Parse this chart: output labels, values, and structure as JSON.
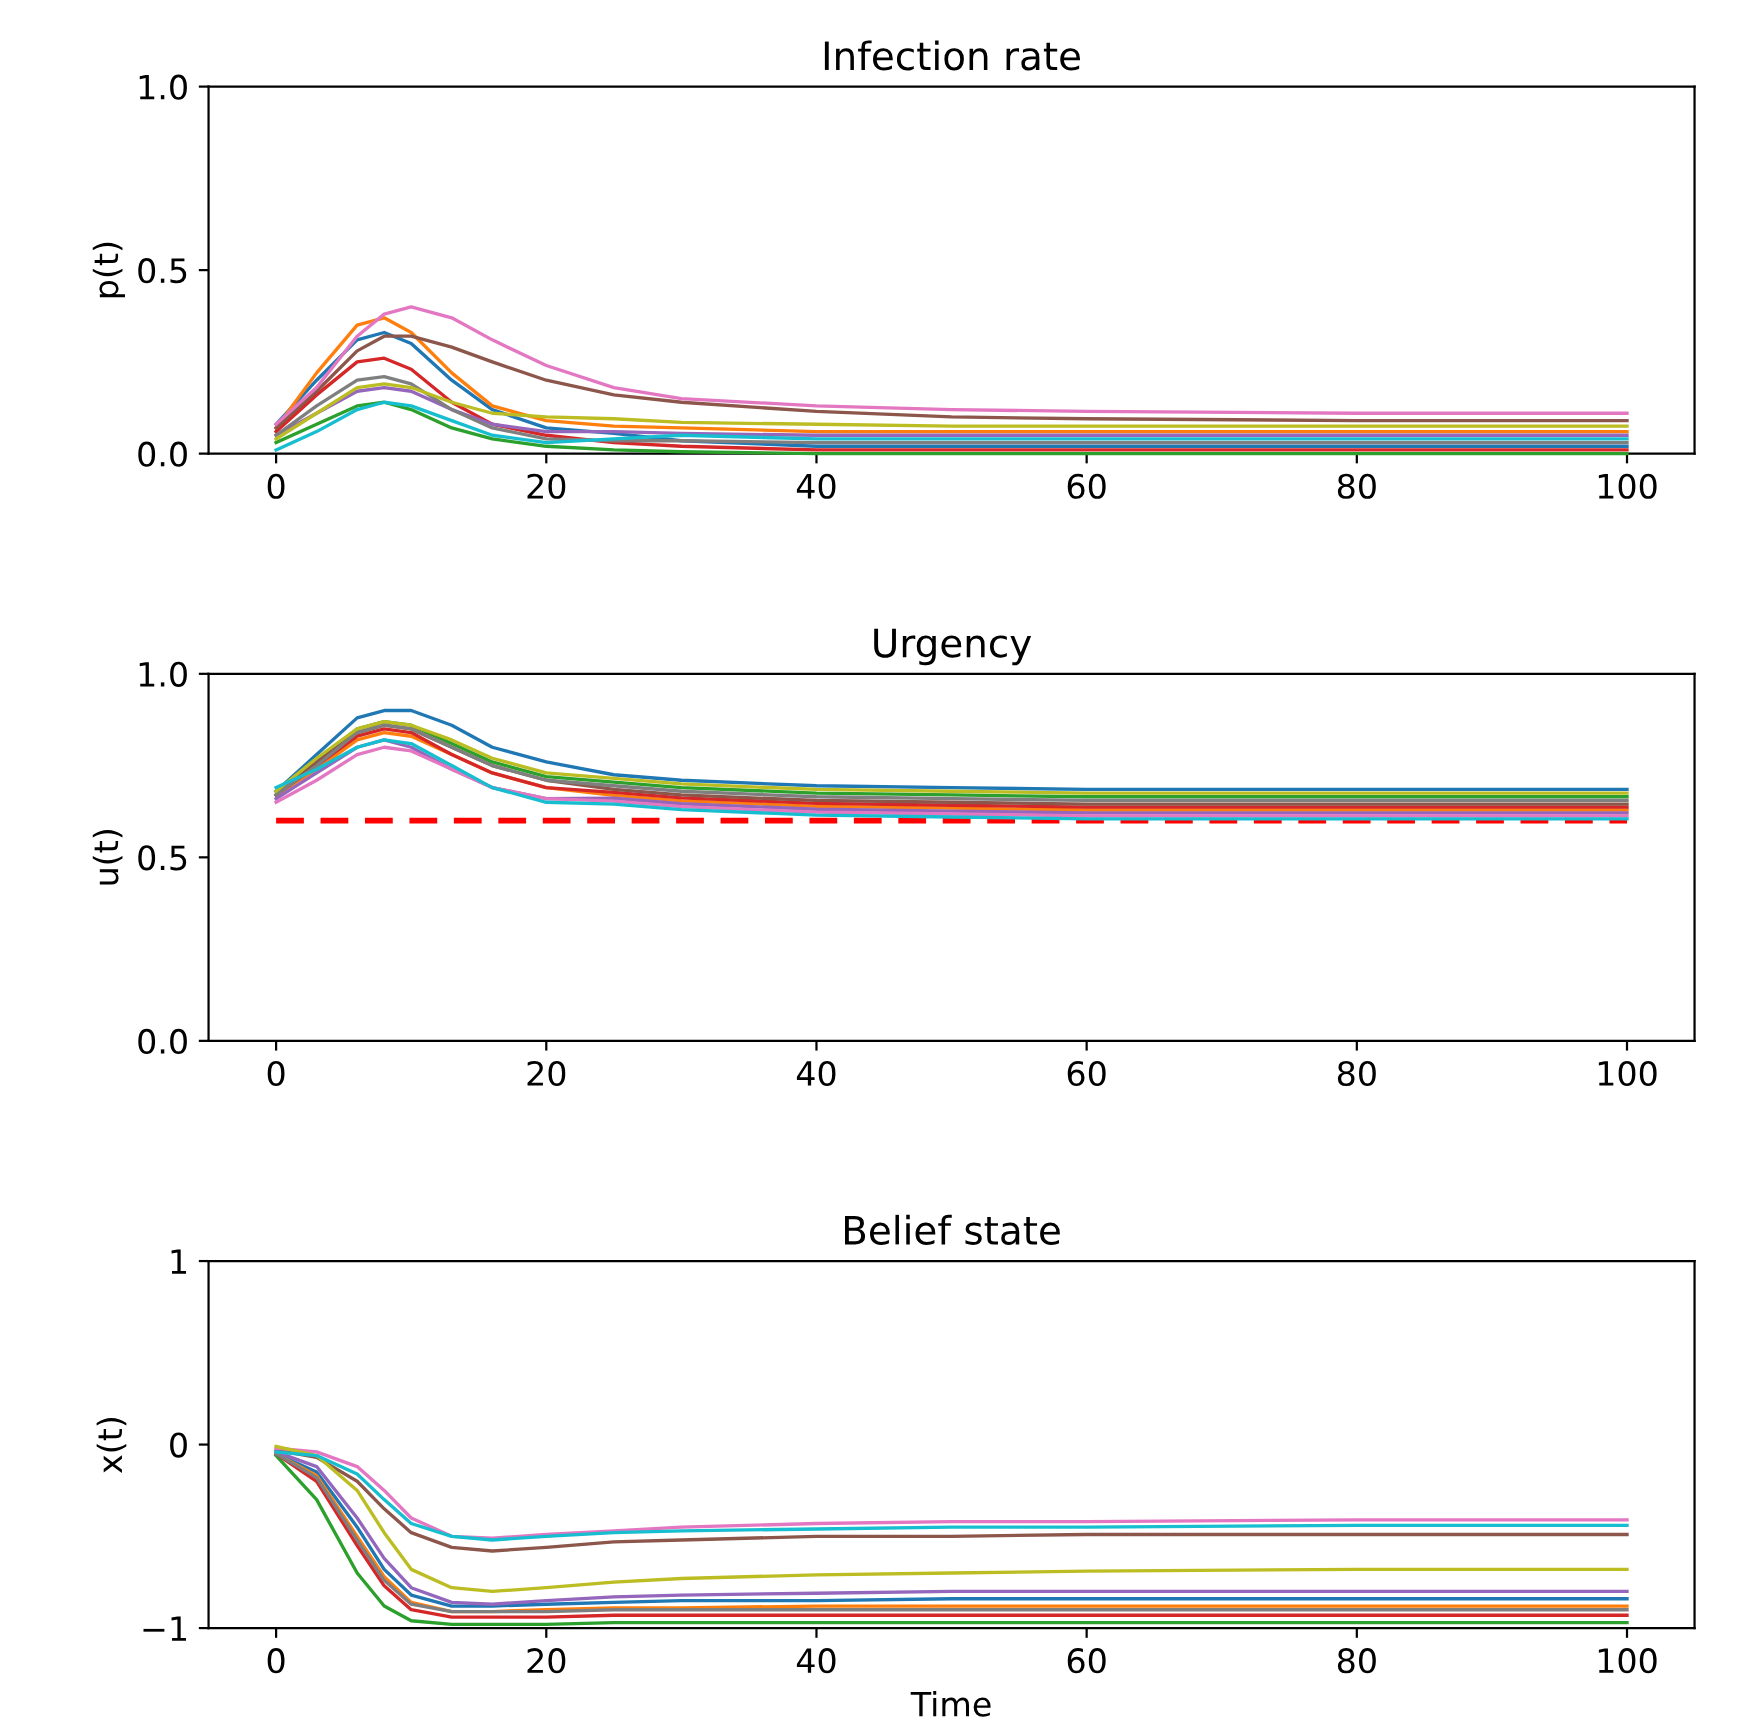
{
  "chart_data": [
    {
      "type": "line",
      "title": "Infection rate",
      "ylabel": "p(t)",
      "x": [
        0,
        3,
        6,
        8,
        10,
        13,
        16,
        20,
        25,
        30,
        40,
        50,
        60,
        80,
        100
      ],
      "xlim": [
        -5,
        105
      ],
      "xticks": [
        0,
        20,
        40,
        60,
        80,
        100
      ],
      "ylim": [
        0,
        1
      ],
      "yticks": [
        {
          "value": 0,
          "label": "0.0"
        },
        0.5,
        {
          "value": 1,
          "label": "1.0"
        }
      ],
      "series": [
        {
          "color": "#1f77b4",
          "values": [
            0.08,
            0.2,
            0.31,
            0.33,
            0.3,
            0.2,
            0.12,
            0.07,
            0.055,
            0.035,
            0.02,
            0.02,
            0.02,
            0.02,
            0.02
          ]
        },
        {
          "color": "#ff7f0e",
          "values": [
            0.07,
            0.22,
            0.35,
            0.37,
            0.33,
            0.22,
            0.13,
            0.09,
            0.075,
            0.07,
            0.06,
            0.06,
            0.06,
            0.06,
            0.06
          ]
        },
        {
          "color": "#2ca02c",
          "values": [
            0.03,
            0.08,
            0.13,
            0.14,
            0.12,
            0.07,
            0.04,
            0.02,
            0.01,
            0.005,
            0,
            0,
            0,
            0,
            0
          ]
        },
        {
          "color": "#d62728",
          "values": [
            0.06,
            0.16,
            0.25,
            0.26,
            0.23,
            0.14,
            0.08,
            0.05,
            0.03,
            0.02,
            0.01,
            0.01,
            0.01,
            0.01,
            0.01
          ]
        },
        {
          "color": "#9467bd",
          "values": [
            0.05,
            0.11,
            0.17,
            0.18,
            0.17,
            0.12,
            0.08,
            0.06,
            0.06,
            0.055,
            0.05,
            0.05,
            0.05,
            0.05,
            0.05
          ]
        },
        {
          "color": "#8c564b",
          "values": [
            0.07,
            0.17,
            0.28,
            0.32,
            0.32,
            0.29,
            0.25,
            0.2,
            0.16,
            0.14,
            0.115,
            0.1,
            0.095,
            0.09,
            0.09
          ]
        },
        {
          "color": "#e377c2",
          "values": [
            0.08,
            0.18,
            0.32,
            0.38,
            0.4,
            0.37,
            0.31,
            0.24,
            0.18,
            0.15,
            0.13,
            0.12,
            0.115,
            0.11,
            0.11
          ]
        },
        {
          "color": "#7f7f7f",
          "values": [
            0.05,
            0.13,
            0.2,
            0.21,
            0.19,
            0.12,
            0.07,
            0.04,
            0.035,
            0.035,
            0.03,
            0.03,
            0.03,
            0.03,
            0.03
          ]
        },
        {
          "color": "#bcbd22",
          "values": [
            0.04,
            0.11,
            0.18,
            0.19,
            0.18,
            0.14,
            0.11,
            0.1,
            0.095,
            0.085,
            0.08,
            0.075,
            0.075,
            0.075,
            0.075
          ]
        },
        {
          "color": "#17becf",
          "values": [
            0.01,
            0.06,
            0.12,
            0.14,
            0.13,
            0.09,
            0.05,
            0.03,
            0.04,
            0.05,
            0.04,
            0.04,
            0.04,
            0.04,
            0.04
          ]
        }
      ]
    },
    {
      "type": "line",
      "title": "Urgency",
      "ylabel": "u(t)",
      "x": [
        0,
        3,
        6,
        8,
        10,
        13,
        16,
        20,
        25,
        30,
        40,
        50,
        60,
        80,
        100
      ],
      "xlim": [
        -5,
        105
      ],
      "xticks": [
        0,
        20,
        40,
        60,
        80,
        100
      ],
      "ylim": [
        0,
        1
      ],
      "yticks": [
        {
          "value": 0,
          "label": "0.0"
        },
        0.5,
        {
          "value": 1,
          "label": "1.0"
        }
      ],
      "ref_lines": [
        {
          "axis": "y",
          "value": 0.6,
          "label": null,
          "color": "#ff0000",
          "line_style": "dashed"
        }
      ],
      "series": [
        {
          "color": "#1f77b4",
          "values": [
            0.68,
            0.78,
            0.88,
            0.9,
            0.9,
            0.86,
            0.8,
            0.76,
            0.725,
            0.71,
            0.695,
            0.69,
            0.685,
            0.685,
            0.685
          ]
        },
        {
          "color": "#ff7f0e",
          "values": [
            0.67,
            0.74,
            0.82,
            0.84,
            0.83,
            0.78,
            0.73,
            0.69,
            0.669,
            0.654,
            0.639,
            0.634,
            0.629,
            0.629,
            0.629
          ]
        },
        {
          "color": "#2ca02c",
          "values": [
            0.68,
            0.76,
            0.85,
            0.87,
            0.86,
            0.81,
            0.76,
            0.72,
            0.705,
            0.69,
            0.675,
            0.67,
            0.665,
            0.665,
            0.665
          ]
        },
        {
          "color": "#d62728",
          "values": [
            0.67,
            0.75,
            0.83,
            0.85,
            0.84,
            0.78,
            0.73,
            0.69,
            0.677,
            0.662,
            0.647,
            0.642,
            0.637,
            0.637,
            0.637
          ]
        },
        {
          "color": "#9467bd",
          "values": [
            0.66,
            0.73,
            0.8,
            0.82,
            0.8,
            0.74,
            0.69,
            0.66,
            0.661,
            0.646,
            0.631,
            0.626,
            0.621,
            0.621,
            0.621
          ]
        },
        {
          "color": "#8c564b",
          "values": [
            0.67,
            0.76,
            0.84,
            0.86,
            0.85,
            0.8,
            0.75,
            0.71,
            0.685,
            0.67,
            0.655,
            0.65,
            0.645,
            0.645,
            0.645
          ]
        },
        {
          "color": "#e377c2",
          "values": [
            0.65,
            0.71,
            0.78,
            0.8,
            0.79,
            0.74,
            0.69,
            0.66,
            0.653,
            0.638,
            0.623,
            0.618,
            0.613,
            0.613,
            0.613
          ]
        },
        {
          "color": "#7f7f7f",
          "values": [
            0.67,
            0.75,
            0.84,
            0.86,
            0.85,
            0.8,
            0.75,
            0.71,
            0.695,
            0.68,
            0.665,
            0.66,
            0.655,
            0.655,
            0.655
          ]
        },
        {
          "color": "#bcbd22",
          "values": [
            0.68,
            0.77,
            0.85,
            0.87,
            0.86,
            0.82,
            0.77,
            0.73,
            0.715,
            0.7,
            0.685,
            0.68,
            0.675,
            0.675,
            0.675
          ]
        },
        {
          "color": "#17becf",
          "values": [
            0.69,
            0.74,
            0.8,
            0.82,
            0.81,
            0.75,
            0.69,
            0.65,
            0.645,
            0.63,
            0.615,
            0.61,
            0.605,
            0.605,
            0.605
          ]
        }
      ]
    },
    {
      "type": "line",
      "title": "Belief state",
      "ylabel": "x(t)",
      "xlabel": "Time",
      "x": [
        0,
        3,
        6,
        8,
        10,
        13,
        16,
        20,
        25,
        30,
        40,
        50,
        60,
        80,
        100
      ],
      "xlim": [
        -5,
        105
      ],
      "xticks": [
        0,
        20,
        40,
        60,
        80,
        100
      ],
      "ylim": [
        -1,
        1
      ],
      "yticks": [
        {
          "value": -1,
          "label": "−1"
        },
        0,
        1
      ],
      "series": [
        {
          "color": "#1f77b4",
          "values": [
            -0.05,
            -0.15,
            -0.45,
            -0.68,
            -0.82,
            -0.88,
            -0.88,
            -0.87,
            -0.86,
            -0.85,
            -0.85,
            -0.84,
            -0.84,
            -0.84,
            -0.84
          ]
        },
        {
          "color": "#ff7f0e",
          "values": [
            -0.05,
            -0.17,
            -0.5,
            -0.72,
            -0.86,
            -0.91,
            -0.91,
            -0.9,
            -0.89,
            -0.89,
            -0.88,
            -0.88,
            -0.88,
            -0.88,
            -0.88
          ]
        },
        {
          "color": "#2ca02c",
          "values": [
            -0.06,
            -0.3,
            -0.7,
            -0.88,
            -0.96,
            -0.98,
            -0.98,
            -0.98,
            -0.97,
            -0.97,
            -0.97,
            -0.97,
            -0.97,
            -0.97,
            -0.97
          ]
        },
        {
          "color": "#d62728",
          "values": [
            -0.05,
            -0.2,
            -0.55,
            -0.77,
            -0.9,
            -0.94,
            -0.94,
            -0.94,
            -0.93,
            -0.93,
            -0.93,
            -0.93,
            -0.93,
            -0.93,
            -0.93
          ]
        },
        {
          "color": "#9467bd",
          "values": [
            -0.04,
            -0.12,
            -0.4,
            -0.62,
            -0.78,
            -0.86,
            -0.87,
            -0.85,
            -0.83,
            -0.82,
            -0.81,
            -0.8,
            -0.8,
            -0.8,
            -0.8
          ]
        },
        {
          "color": "#8c564b",
          "values": [
            -0.03,
            -0.07,
            -0.2,
            -0.35,
            -0.48,
            -0.56,
            -0.58,
            -0.56,
            -0.53,
            -0.52,
            -0.5,
            -0.5,
            -0.49,
            -0.49,
            -0.49
          ]
        },
        {
          "color": "#e377c2",
          "values": [
            -0.02,
            -0.04,
            -0.12,
            -0.25,
            -0.4,
            -0.5,
            -0.51,
            -0.49,
            -0.47,
            -0.45,
            -0.43,
            -0.42,
            -0.42,
            -0.41,
            -0.41
          ]
        },
        {
          "color": "#7f7f7f",
          "values": [
            -0.05,
            -0.18,
            -0.52,
            -0.74,
            -0.87,
            -0.91,
            -0.91,
            -0.91,
            -0.9,
            -0.9,
            -0.9,
            -0.9,
            -0.9,
            -0.9,
            -0.9
          ]
        },
        {
          "color": "#bcbd22",
          "values": [
            -0.01,
            -0.06,
            -0.25,
            -0.48,
            -0.68,
            -0.78,
            -0.8,
            -0.78,
            -0.75,
            -0.73,
            -0.71,
            -0.7,
            -0.69,
            -0.68,
            -0.68
          ]
        },
        {
          "color": "#17becf",
          "values": [
            -0.04,
            -0.06,
            -0.16,
            -0.3,
            -0.43,
            -0.5,
            -0.52,
            -0.5,
            -0.48,
            -0.47,
            -0.46,
            -0.45,
            -0.45,
            -0.44,
            -0.44
          ]
        }
      ]
    }
  ]
}
